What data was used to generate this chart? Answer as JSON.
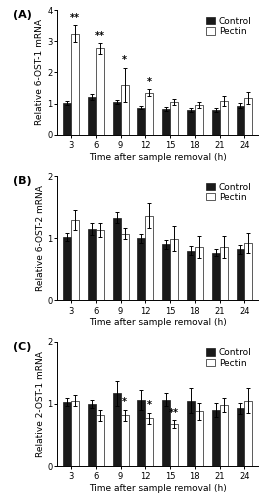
{
  "timepoints": [
    3,
    6,
    9,
    12,
    15,
    18,
    21,
    24
  ],
  "panel_A": {
    "label": "(A)",
    "ylabel": "Relative 6-OST-1 mRNA",
    "ylim": [
      0,
      4
    ],
    "yticks": [
      0,
      1,
      2,
      3,
      4
    ],
    "control_vals": [
      1.02,
      1.22,
      1.05,
      0.87,
      0.82,
      0.78,
      0.8,
      0.93
    ],
    "control_err": [
      0.07,
      0.1,
      0.07,
      0.06,
      0.07,
      0.06,
      0.07,
      0.09
    ],
    "pectin_vals": [
      3.25,
      2.78,
      1.6,
      1.35,
      1.05,
      0.95,
      1.07,
      1.18
    ],
    "pectin_err": [
      0.28,
      0.17,
      0.55,
      0.11,
      0.11,
      0.11,
      0.16,
      0.18
    ],
    "significance": [
      "**",
      "**",
      "*",
      "*",
      "",
      "",
      "",
      ""
    ],
    "show_xlabel": true,
    "show_legend": true
  },
  "panel_B": {
    "label": "(B)",
    "ylabel": "Relative 6-OST-2 mRNA",
    "ylim": [
      0,
      2
    ],
    "yticks": [
      0,
      1,
      2
    ],
    "control_vals": [
      1.02,
      1.15,
      1.33,
      1.0,
      0.9,
      0.8,
      0.77,
      0.82
    ],
    "control_err": [
      0.07,
      0.09,
      0.09,
      0.07,
      0.07,
      0.07,
      0.06,
      0.07
    ],
    "pectin_vals": [
      1.29,
      1.13,
      1.07,
      1.36,
      0.99,
      0.86,
      0.86,
      0.93
    ],
    "pectin_err": [
      0.16,
      0.11,
      0.09,
      0.2,
      0.2,
      0.18,
      0.18,
      0.16
    ],
    "significance": [
      "",
      "",
      "",
      "",
      "",
      "",
      "",
      ""
    ],
    "show_xlabel": true,
    "show_legend": true
  },
  "panel_C": {
    "label": "(C)",
    "ylabel": "Relative 2-OST-1 mRNA",
    "ylim": [
      0,
      2
    ],
    "yticks": [
      0,
      1,
      2
    ],
    "control_vals": [
      1.03,
      1.0,
      1.17,
      1.07,
      1.07,
      1.05,
      0.9,
      0.93
    ],
    "control_err": [
      0.07,
      0.07,
      0.2,
      0.16,
      0.11,
      0.2,
      0.11,
      0.09
    ],
    "pectin_vals": [
      1.05,
      0.82,
      0.82,
      0.77,
      0.68,
      0.88,
      0.98,
      1.05
    ],
    "pectin_err": [
      0.09,
      0.09,
      0.09,
      0.09,
      0.06,
      0.14,
      0.11,
      0.2
    ],
    "significance": [
      "",
      "",
      "*",
      "*",
      "**",
      "",
      "",
      ""
    ],
    "show_xlabel": true,
    "show_legend": true
  },
  "control_color": "#1a1a1a",
  "pectin_color": "#ffffff",
  "bar_edge_color": "#1a1a1a",
  "bar_width": 0.32,
  "fontsize_label": 6.5,
  "fontsize_tick": 6,
  "fontsize_legend": 6.5,
  "fontsize_panel": 8,
  "fontsize_sig": 7
}
